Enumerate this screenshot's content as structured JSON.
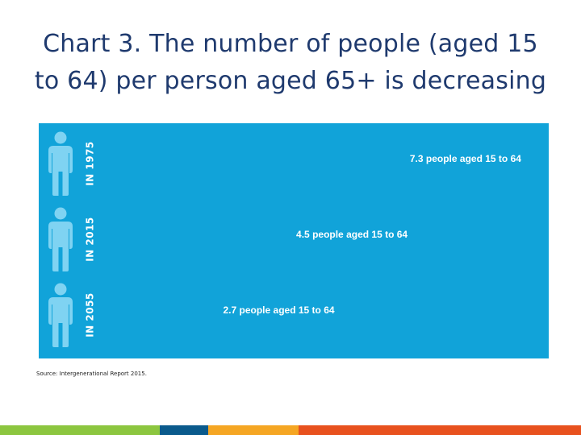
{
  "slide": {
    "title_line1": "Chart 3. The number of people (aged 15",
    "title_line2": "to 64) per person aged 65+ is decreasing",
    "source": "Source: Intergenerational Report 2015."
  },
  "chart_data": {
    "type": "pictograph",
    "unit": "people aged 15 to 64 per person aged 65+",
    "rows": [
      {
        "year_label": "IN 1975",
        "value": 7.3,
        "value_label": "7.3 people aged 15 to 64"
      },
      {
        "year_label": "IN 2015",
        "value": 4.5,
        "value_label": "4.5 people aged 15 to 64"
      },
      {
        "year_label": "IN 2055",
        "value": 2.7,
        "value_label": "2.7 people aged 15 to 64"
      }
    ],
    "colors": {
      "background": "#11a3d9",
      "working_age_figure": "#ffffff",
      "senior_figure": "#7fd3f2",
      "text": "#ffffff"
    }
  },
  "footer": {
    "colors": [
      "#8cc63f",
      "#0a5a8c",
      "#f5a623",
      "#e8511e"
    ]
  }
}
